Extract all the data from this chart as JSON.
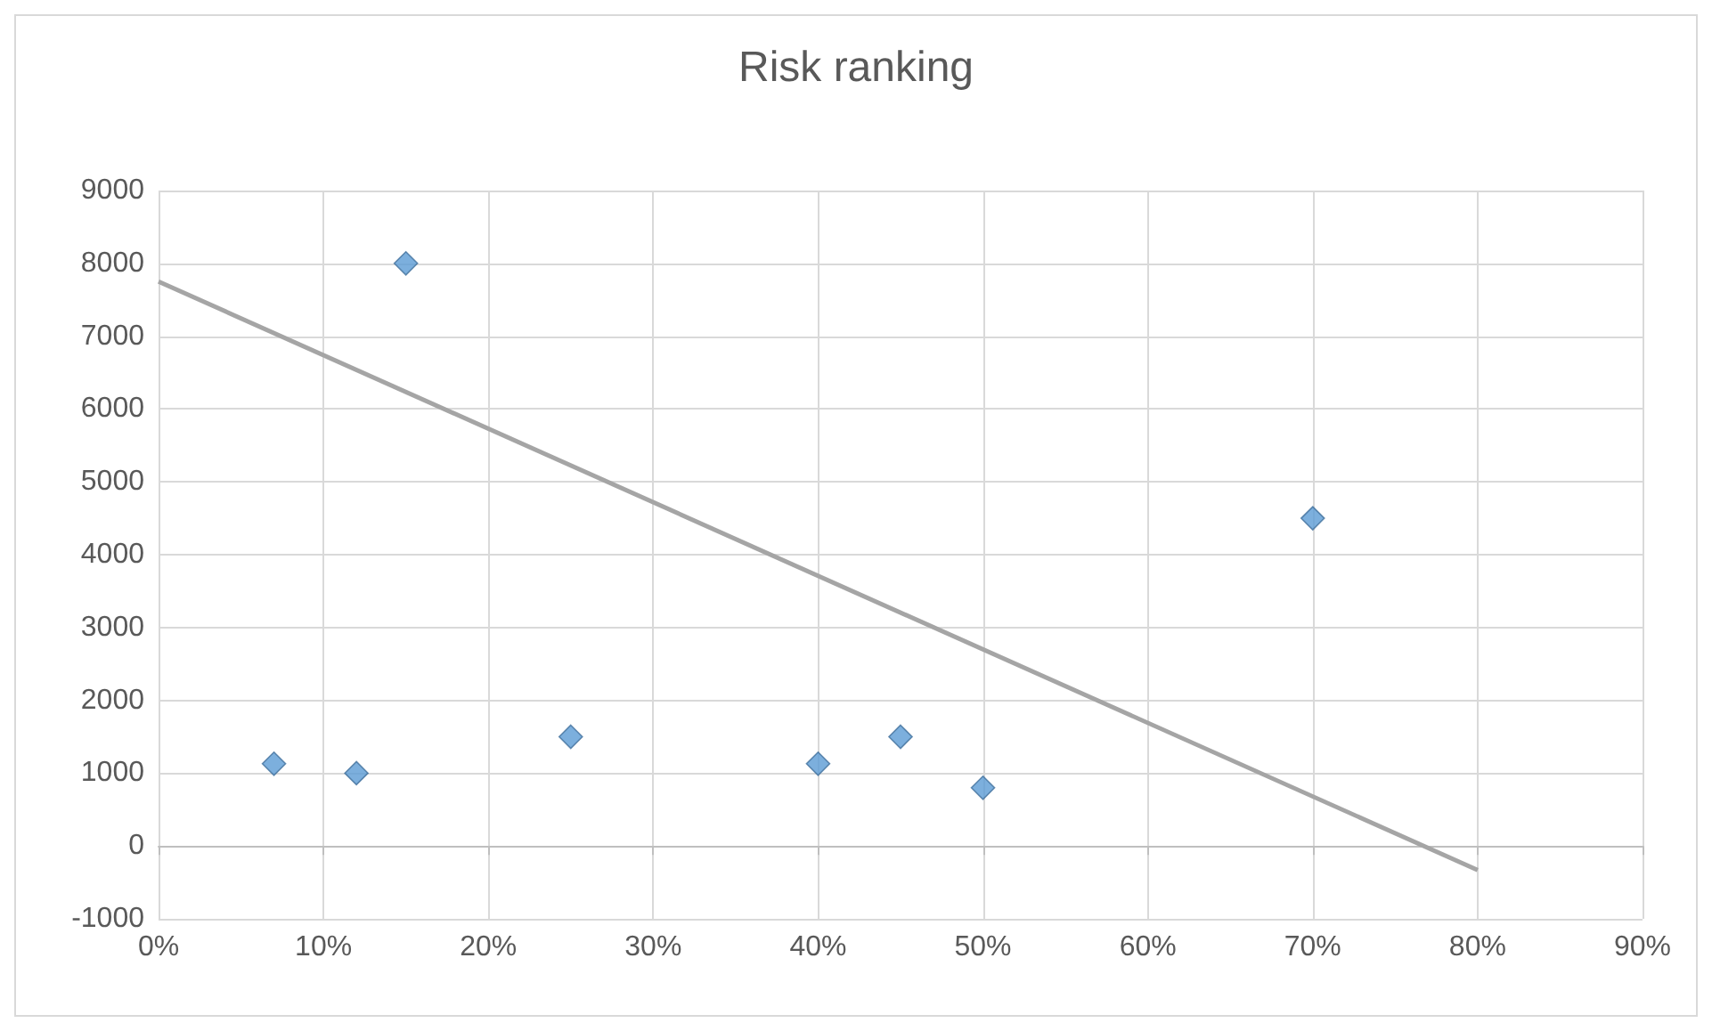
{
  "chart_data": {
    "type": "scatter",
    "title": "Risk ranking",
    "marker": "diamond",
    "grid": true,
    "xlim": [
      0,
      0.9
    ],
    "xticks": [
      {
        "value": 0,
        "label": "0%"
      },
      {
        "value": 0.1,
        "label": "10%"
      },
      {
        "value": 0.2,
        "label": "20%"
      },
      {
        "value": 0.3,
        "label": "30%"
      },
      {
        "value": 0.4,
        "label": "40%"
      },
      {
        "value": 0.5,
        "label": "50%"
      },
      {
        "value": 0.6,
        "label": "60%"
      },
      {
        "value": 0.7,
        "label": "70%"
      },
      {
        "value": 0.8,
        "label": "80%"
      },
      {
        "value": 0.9,
        "label": "90%"
      }
    ],
    "ylim": [
      -1000,
      9000
    ],
    "yticks": [
      -1000,
      0,
      1000,
      2000,
      3000,
      4000,
      5000,
      6000,
      7000,
      8000,
      9000
    ],
    "series": [
      {
        "color": "#5b9bd5",
        "x": [
          0.07,
          0.12,
          0.15,
          0.25,
          0.4,
          0.45,
          0.5,
          0.7
        ],
        "values": [
          1130,
          1000,
          8000,
          1500,
          1130,
          1500,
          800,
          4500
        ]
      },
      {
        "type": "line",
        "color": "#a5a5a5",
        "marker": "none",
        "line_style": "solid",
        "x": [
          0,
          0.8
        ],
        "values": [
          7750,
          -330
        ]
      }
    ]
  }
}
